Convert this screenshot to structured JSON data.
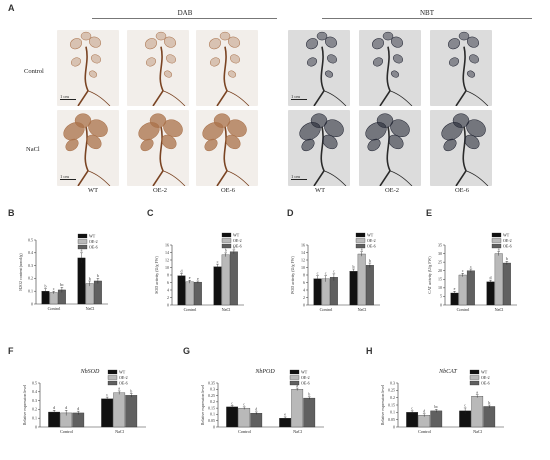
{
  "panel_labels": [
    "A",
    "B",
    "C",
    "D",
    "E",
    "F",
    "G",
    "H"
  ],
  "panelA": {
    "stain_headers": [
      "DAB",
      "NBT"
    ],
    "row_labels": [
      "Control",
      "NaCl"
    ],
    "col_labels": [
      "WT",
      "OE-2",
      "OE-6",
      "WT",
      "OE-2",
      "OE-6"
    ],
    "scale_text": "1 cm"
  },
  "colors": {
    "WT": "#111111",
    "OE-2": "#b9b9b9",
    "OE-6": "#606060",
    "dab_bg": "#f2eeea",
    "dab_stain": "#a9714a",
    "nbt_bg": "#dcdcdc",
    "nbt_stain": "#1f2230"
  },
  "chart_data": [
    {
      "id": "B",
      "type": "bar",
      "categories": [
        "Control",
        "NaCl"
      ],
      "ylabel": "H2O2 content (umol/g)",
      "ylim": [
        0,
        0.5
      ],
      "yticks": [
        "0",
        "0.1",
        "0.2",
        "0.3",
        "0.4",
        "0.5"
      ],
      "series": [
        {
          "name": "WT",
          "values": [
            0.1,
            0.36
          ],
          "errors": [
            0.02,
            0.04
          ],
          "letters": [
            "b",
            "a"
          ]
        },
        {
          "name": "OE-2",
          "values": [
            0.09,
            0.16
          ],
          "errors": [
            0.01,
            0.02
          ],
          "letters": [
            "c",
            "b"
          ]
        },
        {
          "name": "OE-6",
          "values": [
            0.11,
            0.18
          ],
          "errors": [
            0.02,
            0.02
          ],
          "letters": [
            "bc",
            "b"
          ]
        }
      ]
    },
    {
      "id": "C",
      "type": "bar",
      "categories": [
        "Control",
        "NaCl"
      ],
      "ylabel": "SOD activity (U/g FW)",
      "ylim": [
        0,
        16
      ],
      "yticks": [
        "0",
        "2",
        "4",
        "6",
        "8",
        "10",
        "12",
        "14",
        "16"
      ],
      "series": [
        {
          "name": "WT",
          "values": [
            7.8,
            10.2
          ],
          "errors": [
            0.6,
            0.7
          ],
          "letters": [
            "d",
            "c"
          ]
        },
        {
          "name": "OE-2",
          "values": [
            6.2,
            13.4
          ],
          "errors": [
            0.4,
            0.5
          ],
          "letters": [
            "e",
            "b"
          ]
        },
        {
          "name": "OE-6",
          "values": [
            6.1,
            14.2
          ],
          "errors": [
            0.3,
            0.5
          ],
          "letters": [
            "e",
            "a"
          ]
        }
      ]
    },
    {
      "id": "D",
      "type": "bar",
      "categories": [
        "Control",
        "NaCl"
      ],
      "ylabel": "POD activity (U/g FW)",
      "ylim": [
        0,
        16
      ],
      "yticks": [
        "0",
        "2",
        "4",
        "6",
        "8",
        "10",
        "12",
        "14",
        "16"
      ],
      "series": [
        {
          "name": "WT",
          "values": [
            7.0,
            9.0
          ],
          "errors": [
            0.8,
            0.6
          ],
          "letters": [
            "c",
            "b"
          ]
        },
        {
          "name": "OE-2",
          "values": [
            7.0,
            13.6
          ],
          "errors": [
            0.8,
            0.6
          ],
          "letters": [
            "c",
            "a"
          ]
        },
        {
          "name": "OE-6",
          "values": [
            7.4,
            10.6
          ],
          "errors": [
            0.9,
            0.6
          ],
          "letters": [
            "c",
            "b"
          ]
        }
      ]
    },
    {
      "id": "E",
      "type": "bar",
      "categories": [
        "Control",
        "NaCl"
      ],
      "ylabel": "CAT activity (U/g FW)",
      "ylim": [
        0,
        35
      ],
      "yticks": [
        "0",
        "5",
        "10",
        "15",
        "20",
        "25",
        "30",
        "35"
      ],
      "series": [
        {
          "name": "WT",
          "values": [
            7.0,
            13.5
          ],
          "errors": [
            1.0,
            1.0
          ],
          "letters": [
            "e",
            "d"
          ]
        },
        {
          "name": "OE-2",
          "values": [
            17.5,
            30.0
          ],
          "errors": [
            1.0,
            1.2
          ],
          "letters": [
            "c",
            "a"
          ]
        },
        {
          "name": "OE-6",
          "values": [
            20.0,
            24.5
          ],
          "errors": [
            1.0,
            1.0
          ],
          "letters": [
            "c",
            "b"
          ]
        }
      ]
    },
    {
      "id": "F",
      "type": "bar",
      "gene": "NbSOD",
      "categories": [
        "Control",
        "NaCl"
      ],
      "ylabel": "Relative expression level",
      "ylim": [
        0,
        0.5
      ],
      "yticks": [
        "0",
        "0.1",
        "0.2",
        "0.3",
        "0.4",
        "0.5"
      ],
      "series": [
        {
          "name": "WT",
          "values": [
            0.17,
            0.32
          ],
          "errors": [
            0.02,
            0.02
          ],
          "letters": [
            "d",
            "c"
          ]
        },
        {
          "name": "OE-2",
          "values": [
            0.16,
            0.39
          ],
          "errors": [
            0.03,
            0.02
          ],
          "letters": [
            "d",
            "a"
          ]
        },
        {
          "name": "OE-6",
          "values": [
            0.16,
            0.36
          ],
          "errors": [
            0.02,
            0.02
          ],
          "letters": [
            "d",
            "b"
          ]
        }
      ]
    },
    {
      "id": "G",
      "type": "bar",
      "gene": "NbPOD",
      "categories": [
        "Control",
        "NaCl"
      ],
      "ylabel": "Relative expression level",
      "ylim": [
        0,
        0.35
      ],
      "yticks": [
        "0",
        "0.05",
        "0.1",
        "0.15",
        "0.2",
        "0.25",
        "0.3",
        "0.35"
      ],
      "series": [
        {
          "name": "WT",
          "values": [
            0.16,
            0.07
          ],
          "errors": [
            0.01,
            0.01
          ],
          "letters": [
            "c",
            "e"
          ]
        },
        {
          "name": "OE-2",
          "values": [
            0.15,
            0.3
          ],
          "errors": [
            0.01,
            0.01
          ],
          "letters": [
            "c",
            "a"
          ]
        },
        {
          "name": "OE-6",
          "values": [
            0.11,
            0.23
          ],
          "errors": [
            0.01,
            0.01
          ],
          "letters": [
            "d",
            "b"
          ]
        }
      ]
    },
    {
      "id": "H",
      "type": "bar",
      "gene": "NbCAT",
      "categories": [
        "Control",
        "NaCl"
      ],
      "ylabel": "Relative expression level",
      "ylim": [
        0,
        0.3
      ],
      "yticks": [
        "0",
        "0.05",
        "0.1",
        "0.15",
        "0.2",
        "0.25",
        "0.3"
      ],
      "series": [
        {
          "name": "WT",
          "values": [
            0.1,
            0.11
          ],
          "errors": [
            0.01,
            0.02
          ],
          "letters": [
            "c",
            "c"
          ]
        },
        {
          "name": "OE-2",
          "values": [
            0.08,
            0.21
          ],
          "errors": [
            0.01,
            0.01
          ],
          "letters": [
            "d",
            "a"
          ]
        },
        {
          "name": "OE-6",
          "values": [
            0.11,
            0.14
          ],
          "errors": [
            0.01,
            0.01
          ],
          "letters": [
            "bc",
            "b"
          ]
        }
      ]
    }
  ]
}
